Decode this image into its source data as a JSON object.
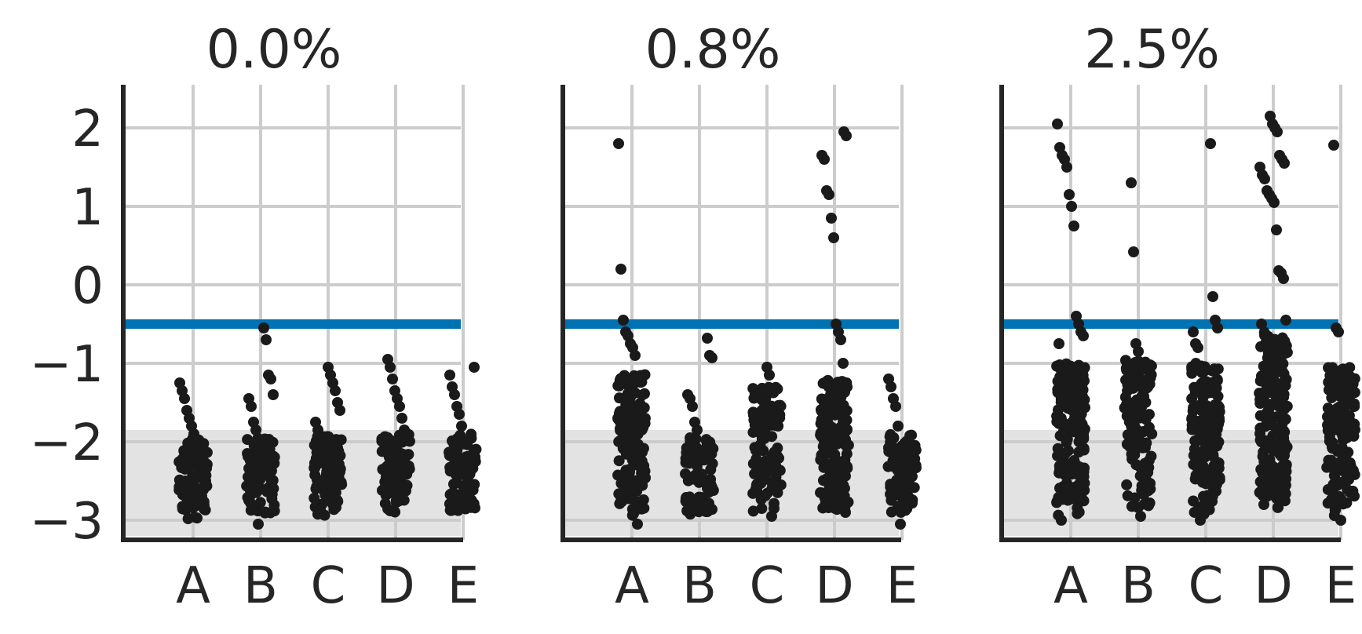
{
  "colors": {
    "points": "#1a1a1a",
    "threshold_line": "#0072b2",
    "band_fill": "#d9d9d9",
    "grid": "#cccccc",
    "axis": "#262626"
  },
  "chart_data": [
    {
      "type": "scatter",
      "subtype": "strip",
      "title": "0.0%",
      "categories": [
        "A",
        "B",
        "C",
        "D",
        "E"
      ],
      "yticks": [
        -3,
        -2,
        -1,
        0,
        1,
        2
      ],
      "ytick_labels": [
        "−3",
        "−2",
        "−1",
        "0",
        "1",
        "2"
      ],
      "ylim": [
        -3.2,
        2.55
      ],
      "grid": true,
      "threshold_y": -0.5,
      "band": [
        -3.2,
        -1.85
      ],
      "bulk": [
        {
          "category": "A",
          "n": 90,
          "range": [
            -3.0,
            -1.95
          ]
        },
        {
          "category": "B",
          "n": 90,
          "range": [
            -2.95,
            -1.95
          ]
        },
        {
          "category": "C",
          "n": 90,
          "range": [
            -2.95,
            -1.9
          ]
        },
        {
          "category": "D",
          "n": 90,
          "range": [
            -2.9,
            -1.9
          ]
        },
        {
          "category": "E",
          "n": 90,
          "range": [
            -2.9,
            -1.9
          ]
        }
      ],
      "points": [
        {
          "category": "A",
          "y": -1.25
        },
        {
          "category": "A",
          "y": -1.35
        },
        {
          "category": "A",
          "y": -1.45
        },
        {
          "category": "A",
          "y": -1.6
        },
        {
          "category": "A",
          "y": -1.7
        },
        {
          "category": "A",
          "y": -1.8
        },
        {
          "category": "A",
          "y": -1.9
        },
        {
          "category": "B",
          "y": -0.55
        },
        {
          "category": "B",
          "y": -0.7
        },
        {
          "category": "B",
          "y": -1.15
        },
        {
          "category": "B",
          "y": -1.2
        },
        {
          "category": "B",
          "y": -1.4
        },
        {
          "category": "B",
          "y": -1.45
        },
        {
          "category": "B",
          "y": -1.55
        },
        {
          "category": "B",
          "y": -1.75
        },
        {
          "category": "B",
          "y": -1.85
        },
        {
          "category": "B",
          "y": -3.05
        },
        {
          "category": "C",
          "y": -1.05
        },
        {
          "category": "C",
          "y": -1.15
        },
        {
          "category": "C",
          "y": -1.25
        },
        {
          "category": "C",
          "y": -1.35
        },
        {
          "category": "C",
          "y": -1.5
        },
        {
          "category": "C",
          "y": -1.6
        },
        {
          "category": "C",
          "y": -1.75
        },
        {
          "category": "C",
          "y": -1.85
        },
        {
          "category": "D",
          "y": -0.95
        },
        {
          "category": "D",
          "y": -1.05
        },
        {
          "category": "D",
          "y": -1.2
        },
        {
          "category": "D",
          "y": -1.35
        },
        {
          "category": "D",
          "y": -1.45
        },
        {
          "category": "D",
          "y": -1.55
        },
        {
          "category": "D",
          "y": -1.7
        },
        {
          "category": "D",
          "y": -1.85
        },
        {
          "category": "E",
          "y": -1.05
        },
        {
          "category": "E",
          "y": -1.15
        },
        {
          "category": "E",
          "y": -1.3
        },
        {
          "category": "E",
          "y": -1.4
        },
        {
          "category": "E",
          "y": -1.55
        },
        {
          "category": "E",
          "y": -1.65
        },
        {
          "category": "E",
          "y": -1.8
        }
      ]
    },
    {
      "type": "scatter",
      "subtype": "strip",
      "title": "0.8%",
      "categories": [
        "A",
        "B",
        "C",
        "D",
        "E"
      ],
      "yticks": [
        -3,
        -2,
        -1,
        0,
        1,
        2
      ],
      "ylim": [
        -3.2,
        2.55
      ],
      "grid": true,
      "threshold_y": -0.5,
      "band": [
        -3.2,
        -1.85
      ],
      "bulk": [
        {
          "category": "A",
          "n": 160,
          "range": [
            -2.95,
            -1.1
          ]
        },
        {
          "category": "B",
          "n": 90,
          "range": [
            -2.95,
            -1.95
          ]
        },
        {
          "category": "C",
          "n": 110,
          "range": [
            -2.9,
            -1.3
          ]
        },
        {
          "category": "D",
          "n": 160,
          "range": [
            -2.9,
            -1.2
          ]
        },
        {
          "category": "E",
          "n": 90,
          "range": [
            -2.9,
            -1.9
          ]
        }
      ],
      "points": [
        {
          "category": "A",
          "y": 1.8
        },
        {
          "category": "A",
          "y": 0.2
        },
        {
          "category": "A",
          "y": -0.45
        },
        {
          "category": "A",
          "y": -0.6
        },
        {
          "category": "A",
          "y": -0.65
        },
        {
          "category": "A",
          "y": -0.75
        },
        {
          "category": "A",
          "y": -0.8
        },
        {
          "category": "A",
          "y": -0.9
        },
        {
          "category": "A",
          "y": -3.05
        },
        {
          "category": "B",
          "y": -0.68
        },
        {
          "category": "B",
          "y": -0.9
        },
        {
          "category": "B",
          "y": -0.93
        },
        {
          "category": "B",
          "y": -1.4
        },
        {
          "category": "B",
          "y": -1.45
        },
        {
          "category": "B",
          "y": -1.55
        },
        {
          "category": "B",
          "y": -1.75
        },
        {
          "category": "B",
          "y": -1.85
        },
        {
          "category": "C",
          "y": -1.05
        },
        {
          "category": "C",
          "y": -1.15
        },
        {
          "category": "C",
          "y": -2.95
        },
        {
          "category": "C",
          "y": -2.85
        },
        {
          "category": "D",
          "y": 1.95
        },
        {
          "category": "D",
          "y": 1.9
        },
        {
          "category": "D",
          "y": 1.65
        },
        {
          "category": "D",
          "y": 1.6
        },
        {
          "category": "D",
          "y": 1.2
        },
        {
          "category": "D",
          "y": 1.15
        },
        {
          "category": "D",
          "y": 0.85
        },
        {
          "category": "D",
          "y": 0.6
        },
        {
          "category": "D",
          "y": -0.5
        },
        {
          "category": "D",
          "y": -0.6
        },
        {
          "category": "D",
          "y": -0.7
        },
        {
          "category": "D",
          "y": -1.0
        },
        {
          "category": "D",
          "y": -2.9
        },
        {
          "category": "E",
          "y": -1.2
        },
        {
          "category": "E",
          "y": -1.3
        },
        {
          "category": "E",
          "y": -1.45
        },
        {
          "category": "E",
          "y": -1.55
        },
        {
          "category": "E",
          "y": -1.8
        },
        {
          "category": "E",
          "y": -3.05
        }
      ]
    },
    {
      "type": "scatter",
      "subtype": "strip",
      "title": "2.5%",
      "categories": [
        "A",
        "B",
        "C",
        "D",
        "E"
      ],
      "yticks": [
        -3,
        -2,
        -1,
        0,
        1,
        2
      ],
      "ylim": [
        -3.2,
        2.55
      ],
      "grid": true,
      "threshold_y": -0.5,
      "band": [
        -3.2,
        -1.85
      ],
      "bulk": [
        {
          "category": "A",
          "n": 160,
          "range": [
            -2.95,
            -1.0
          ]
        },
        {
          "category": "B",
          "n": 130,
          "range": [
            -2.9,
            -0.95
          ]
        },
        {
          "category": "C",
          "n": 150,
          "range": [
            -2.95,
            -1.0
          ]
        },
        {
          "category": "D",
          "n": 180,
          "range": [
            -2.85,
            -0.6
          ]
        },
        {
          "category": "E",
          "n": 140,
          "range": [
            -2.95,
            -1.05
          ]
        }
      ],
      "points": [
        {
          "category": "A",
          "y": 2.05
        },
        {
          "category": "A",
          "y": 1.75
        },
        {
          "category": "A",
          "y": 1.65
        },
        {
          "category": "A",
          "y": 1.6
        },
        {
          "category": "A",
          "y": 1.5
        },
        {
          "category": "A",
          "y": 1.15
        },
        {
          "category": "A",
          "y": 1.0
        },
        {
          "category": "A",
          "y": 0.75
        },
        {
          "category": "A",
          "y": -0.4
        },
        {
          "category": "A",
          "y": -0.5
        },
        {
          "category": "A",
          "y": -0.6
        },
        {
          "category": "A",
          "y": -0.65
        },
        {
          "category": "A",
          "y": -0.75
        },
        {
          "category": "A",
          "y": -3.0
        },
        {
          "category": "B",
          "y": 1.3
        },
        {
          "category": "B",
          "y": 0.42
        },
        {
          "category": "B",
          "y": -0.75
        },
        {
          "category": "B",
          "y": -0.85
        },
        {
          "category": "B",
          "y": -2.95
        },
        {
          "category": "C",
          "y": 1.8
        },
        {
          "category": "C",
          "y": -0.15
        },
        {
          "category": "C",
          "y": -0.45
        },
        {
          "category": "C",
          "y": -0.55
        },
        {
          "category": "C",
          "y": -0.6
        },
        {
          "category": "C",
          "y": -0.75
        },
        {
          "category": "C",
          "y": -0.8
        },
        {
          "category": "C",
          "y": -3.0
        },
        {
          "category": "D",
          "y": 2.15
        },
        {
          "category": "D",
          "y": 2.05
        },
        {
          "category": "D",
          "y": 2.0
        },
        {
          "category": "D",
          "y": 1.95
        },
        {
          "category": "D",
          "y": 1.65
        },
        {
          "category": "D",
          "y": 1.6
        },
        {
          "category": "D",
          "y": 1.55
        },
        {
          "category": "D",
          "y": 1.5
        },
        {
          "category": "D",
          "y": 1.4
        },
        {
          "category": "D",
          "y": 1.35
        },
        {
          "category": "D",
          "y": 1.2
        },
        {
          "category": "D",
          "y": 1.15
        },
        {
          "category": "D",
          "y": 1.1
        },
        {
          "category": "D",
          "y": 1.05
        },
        {
          "category": "D",
          "y": 0.7
        },
        {
          "category": "D",
          "y": 0.18
        },
        {
          "category": "D",
          "y": 0.15
        },
        {
          "category": "D",
          "y": 0.08
        },
        {
          "category": "D",
          "y": -0.45
        },
        {
          "category": "D",
          "y": -0.5
        },
        {
          "category": "D",
          "y": -2.8
        },
        {
          "category": "E",
          "y": 1.78
        },
        {
          "category": "E",
          "y": -0.55
        },
        {
          "category": "E",
          "y": -0.6
        },
        {
          "category": "E",
          "y": -3.0
        }
      ]
    }
  ]
}
